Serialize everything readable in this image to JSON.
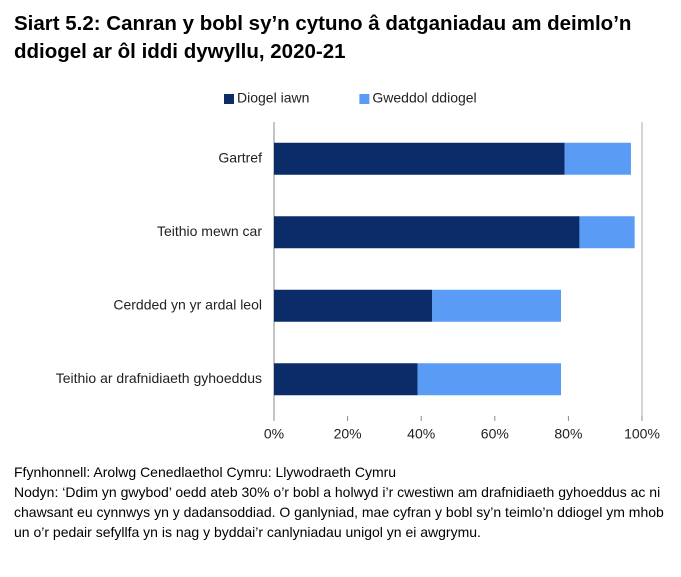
{
  "chart_data": {
    "type": "stacked-barh",
    "title": "Siart 5.2: Canran y bobl sy’n cytuno â datganiadau am deimlo’n ddiogel ar ôl iddi dywyllu, 2020-21",
    "categories": [
      "Gartref",
      "Teithio mewn car",
      "Cerdded yn yr ardal leol",
      "Teithio ar drafnidiaeth gyhoeddus"
    ],
    "series": [
      {
        "name": "Diogel iawn",
        "color": "#0c2c69",
        "values": [
          79,
          83,
          43,
          39
        ]
      },
      {
        "name": "Gweddol ddiogel",
        "color": "#5a9cf5",
        "values": [
          18,
          15,
          35,
          39
        ]
      }
    ],
    "xlim": [
      0,
      100
    ],
    "xticks": [
      {
        "value": 0,
        "label": "0%"
      },
      {
        "value": 20,
        "label": "20%"
      },
      {
        "value": 40,
        "label": "40%"
      },
      {
        "value": 60,
        "label": "60%"
      },
      {
        "value": 80,
        "label": "80%"
      },
      {
        "value": 100,
        "label": "100%"
      }
    ],
    "grid": false,
    "legend": "top",
    "source": "Ffynhonnell: Arolwg Cenedlaethol Cymru: Llywodraeth Cymru",
    "note": "Nodyn: ‘Ddim yn gwybod’ oedd ateb 30% o’r bobl a holwyd i’r cwestiwn am drafnidiaeth gyhoeddus ac ni chawsant eu cynnwys yn y dadansoddiad. O ganlyniad, mae cyfran y bobl sy’n teimlo’n ddiogel ym mhob un o’r pedair sefyllfa yn is nag y byddai’r canlyniadau unigol yn ei awgrymu."
  }
}
